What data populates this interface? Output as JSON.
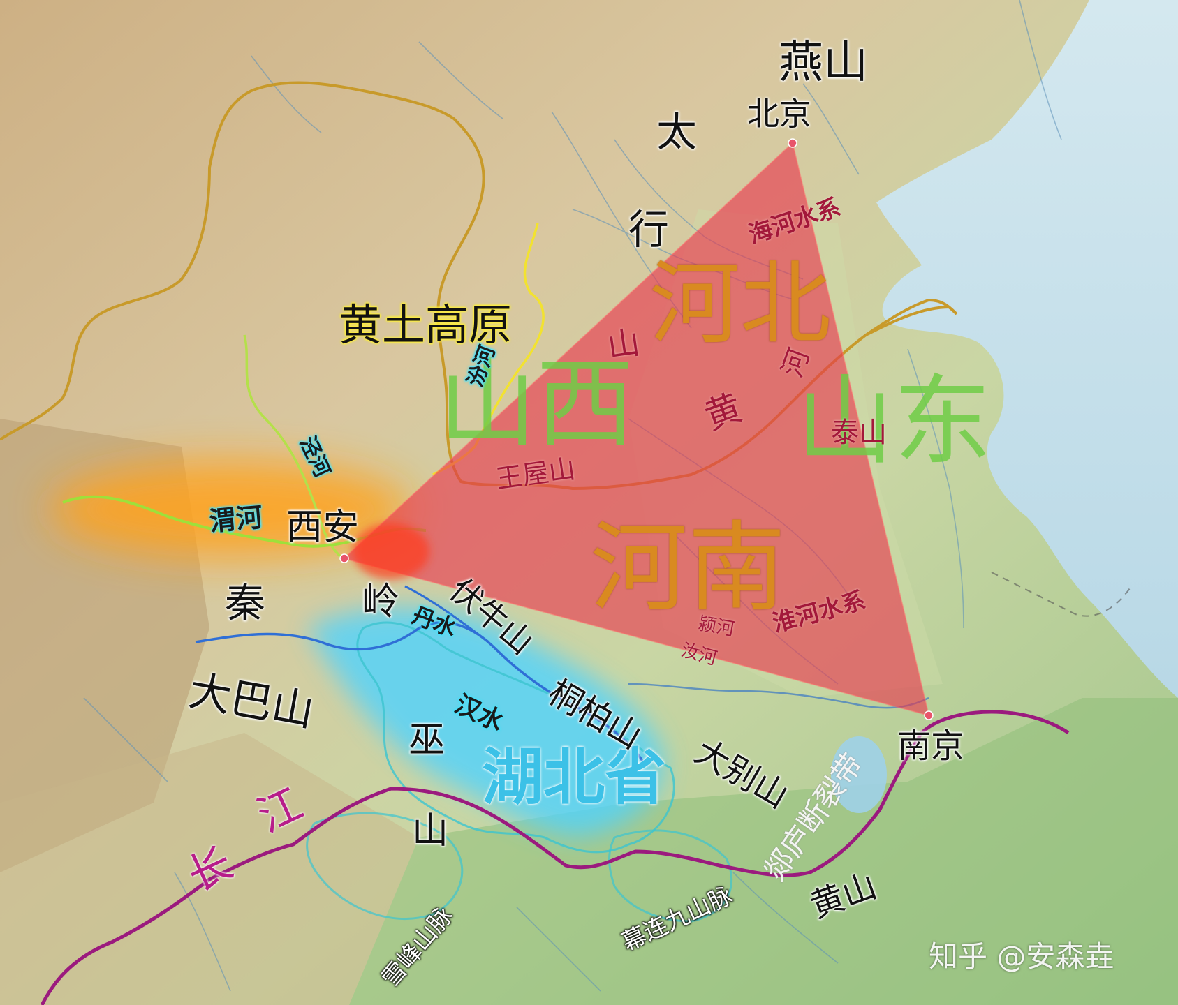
{
  "map": {
    "provinces": {
      "hebei": "河北",
      "henan": "河南",
      "shanxi": "山西",
      "shandong": "山东",
      "hubei": "湖北省"
    },
    "regions": {
      "loess_plateau": "黄土高原"
    },
    "cities": {
      "beijing": "北京",
      "xian": "西安",
      "nanjing": "南京"
    },
    "mountains": {
      "yanshan": "燕山",
      "taihang": [
        "太",
        "行",
        "山"
      ],
      "wangwu": "王屋山",
      "taishan": "泰山",
      "qinling": [
        "秦",
        "岭"
      ],
      "funiu": "伏牛山",
      "daba": "大巴山",
      "wushan": [
        "巫",
        "山"
      ],
      "tongbai": "桐柏山",
      "dabie": "大别山",
      "huangshan": "黄山",
      "xuefeng": "雪峰山脉",
      "muliang": "幕连九山脉"
    },
    "rivers": {
      "haihe": "海河水系",
      "huanghe": [
        "黄",
        "河"
      ],
      "fenhe": "汾河",
      "jinghe": "泾河",
      "weihe": "渭河",
      "danshui": "丹水",
      "hanshui": "汉水",
      "yinghe": "颍河",
      "ruhe": "汝河",
      "huaihe": "淮河水系",
      "changjiang": [
        "长",
        "江"
      ]
    },
    "fault": "郯庐断裂带",
    "watermark": "知乎 @安森垚"
  },
  "colors": {
    "triangle_fill": "#e8364e",
    "yangtze": "#9b1a7e",
    "yellow_river": "#c89a2a",
    "hubei_glow": "#4fd3ff",
    "weihe_glow": "#ffa21a"
  }
}
